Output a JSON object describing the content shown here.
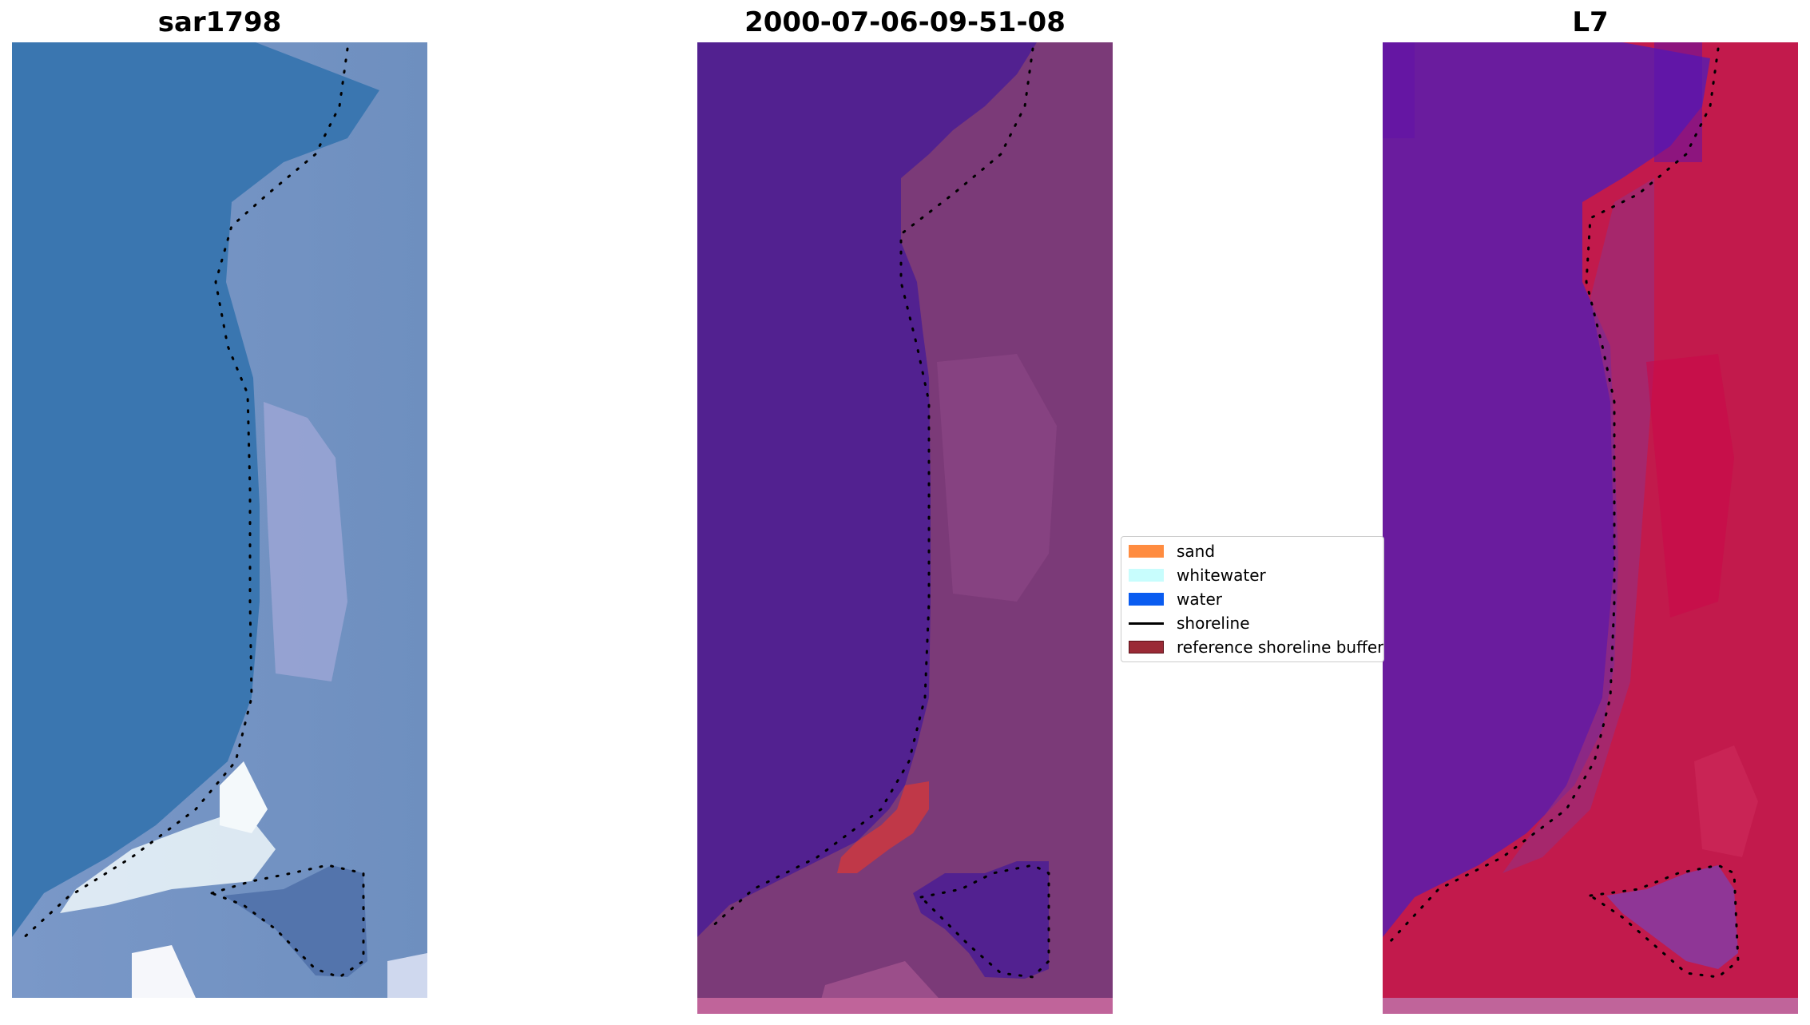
{
  "panels": [
    {
      "title": "sar1798"
    },
    {
      "title": "2000-07-06-09-51-08"
    },
    {
      "title": "L7"
    }
  ],
  "legend": {
    "items": [
      {
        "label": "sand",
        "kind": "patch",
        "color": "#ff8c40"
      },
      {
        "label": "whitewater",
        "kind": "patch",
        "color": "#c8fdfd"
      },
      {
        "label": "water",
        "kind": "patch",
        "color": "#0a5cf0"
      },
      {
        "label": "shoreline",
        "kind": "line",
        "color": "#000000"
      },
      {
        "label": "reference shoreline buffer",
        "kind": "patch",
        "color": "#9a2a36"
      }
    ]
  },
  "colors": {
    "satellite_water": "#3a76b0",
    "satellite_land": "#6f8fc0",
    "classified_water": "#522190",
    "classified_land": "#7b3a78",
    "classified_buffer": "#c03848",
    "index_water": "#6a1c9e",
    "index_land": "#c21a4c"
  }
}
